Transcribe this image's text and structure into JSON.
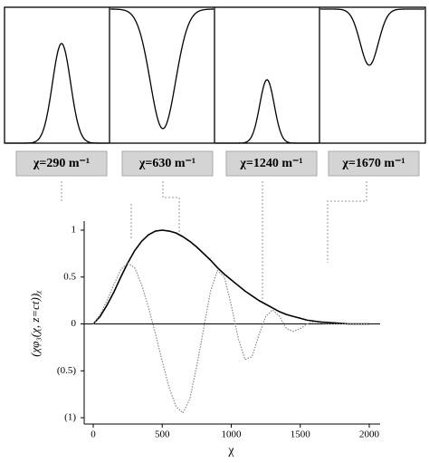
{
  "chart_data": {
    "type": "line",
    "panels": [
      "χ=290 m⁻¹",
      "χ=630 m⁻¹",
      "χ=1240 m⁻¹",
      "χ=1670 m⁻¹"
    ],
    "xlabel": "χ",
    "ylabel": "(χφ₃(χ, z=ct))ᵪ",
    "x": [
      0,
      50,
      100,
      150,
      200,
      250,
      300,
      350,
      400,
      450,
      500,
      550,
      600,
      650,
      700,
      750,
      800,
      850,
      900,
      950,
      1000,
      1050,
      1100,
      1150,
      1200,
      1250,
      1300,
      1350,
      1400,
      1450,
      1500,
      1550,
      1600,
      1650,
      1700,
      1750,
      1800,
      1850,
      1900,
      1950,
      2000
    ],
    "series": [
      {
        "color": "#000000",
        "style": "solid",
        "values": [
          0,
          0.08,
          0.2,
          0.34,
          0.5,
          0.65,
          0.78,
          0.88,
          0.95,
          0.99,
          1,
          0.99,
          0.97,
          0.93,
          0.88,
          0.82,
          0.75,
          0.68,
          0.6,
          0.53,
          0.47,
          0.41,
          0.35,
          0.3,
          0.25,
          0.21,
          0.17,
          0.13,
          0.1,
          0.08,
          0.06,
          0.04,
          0.03,
          0.02,
          0.015,
          0.01,
          0.005,
          0,
          0,
          0,
          0
        ]
      },
      {
        "color": "#888888",
        "style": "dotted",
        "values": [
          0,
          0.1,
          0.25,
          0.42,
          0.58,
          0.65,
          0.6,
          0.42,
          0.18,
          -0.1,
          -0.4,
          -0.68,
          -0.88,
          -0.95,
          -0.8,
          -0.45,
          -0.05,
          0.35,
          0.57,
          0.5,
          0.2,
          -0.15,
          -0.38,
          -0.35,
          -0.12,
          0.08,
          0.15,
          0.08,
          -0.05,
          -0.08,
          -0.05,
          0,
          0.02,
          0.01,
          0,
          0,
          0,
          0,
          0,
          0,
          0
        ]
      }
    ],
    "xlim": [
      0,
      2000
    ],
    "xticks": [
      0,
      500,
      1000,
      1500,
      2000
    ],
    "ylim": [
      -1,
      1
    ],
    "yticks": [
      {
        "value": -1,
        "label": "(1)"
      },
      {
        "value": -0.5,
        "label": "(0.5)"
      },
      0,
      0.5,
      1
    ]
  }
}
